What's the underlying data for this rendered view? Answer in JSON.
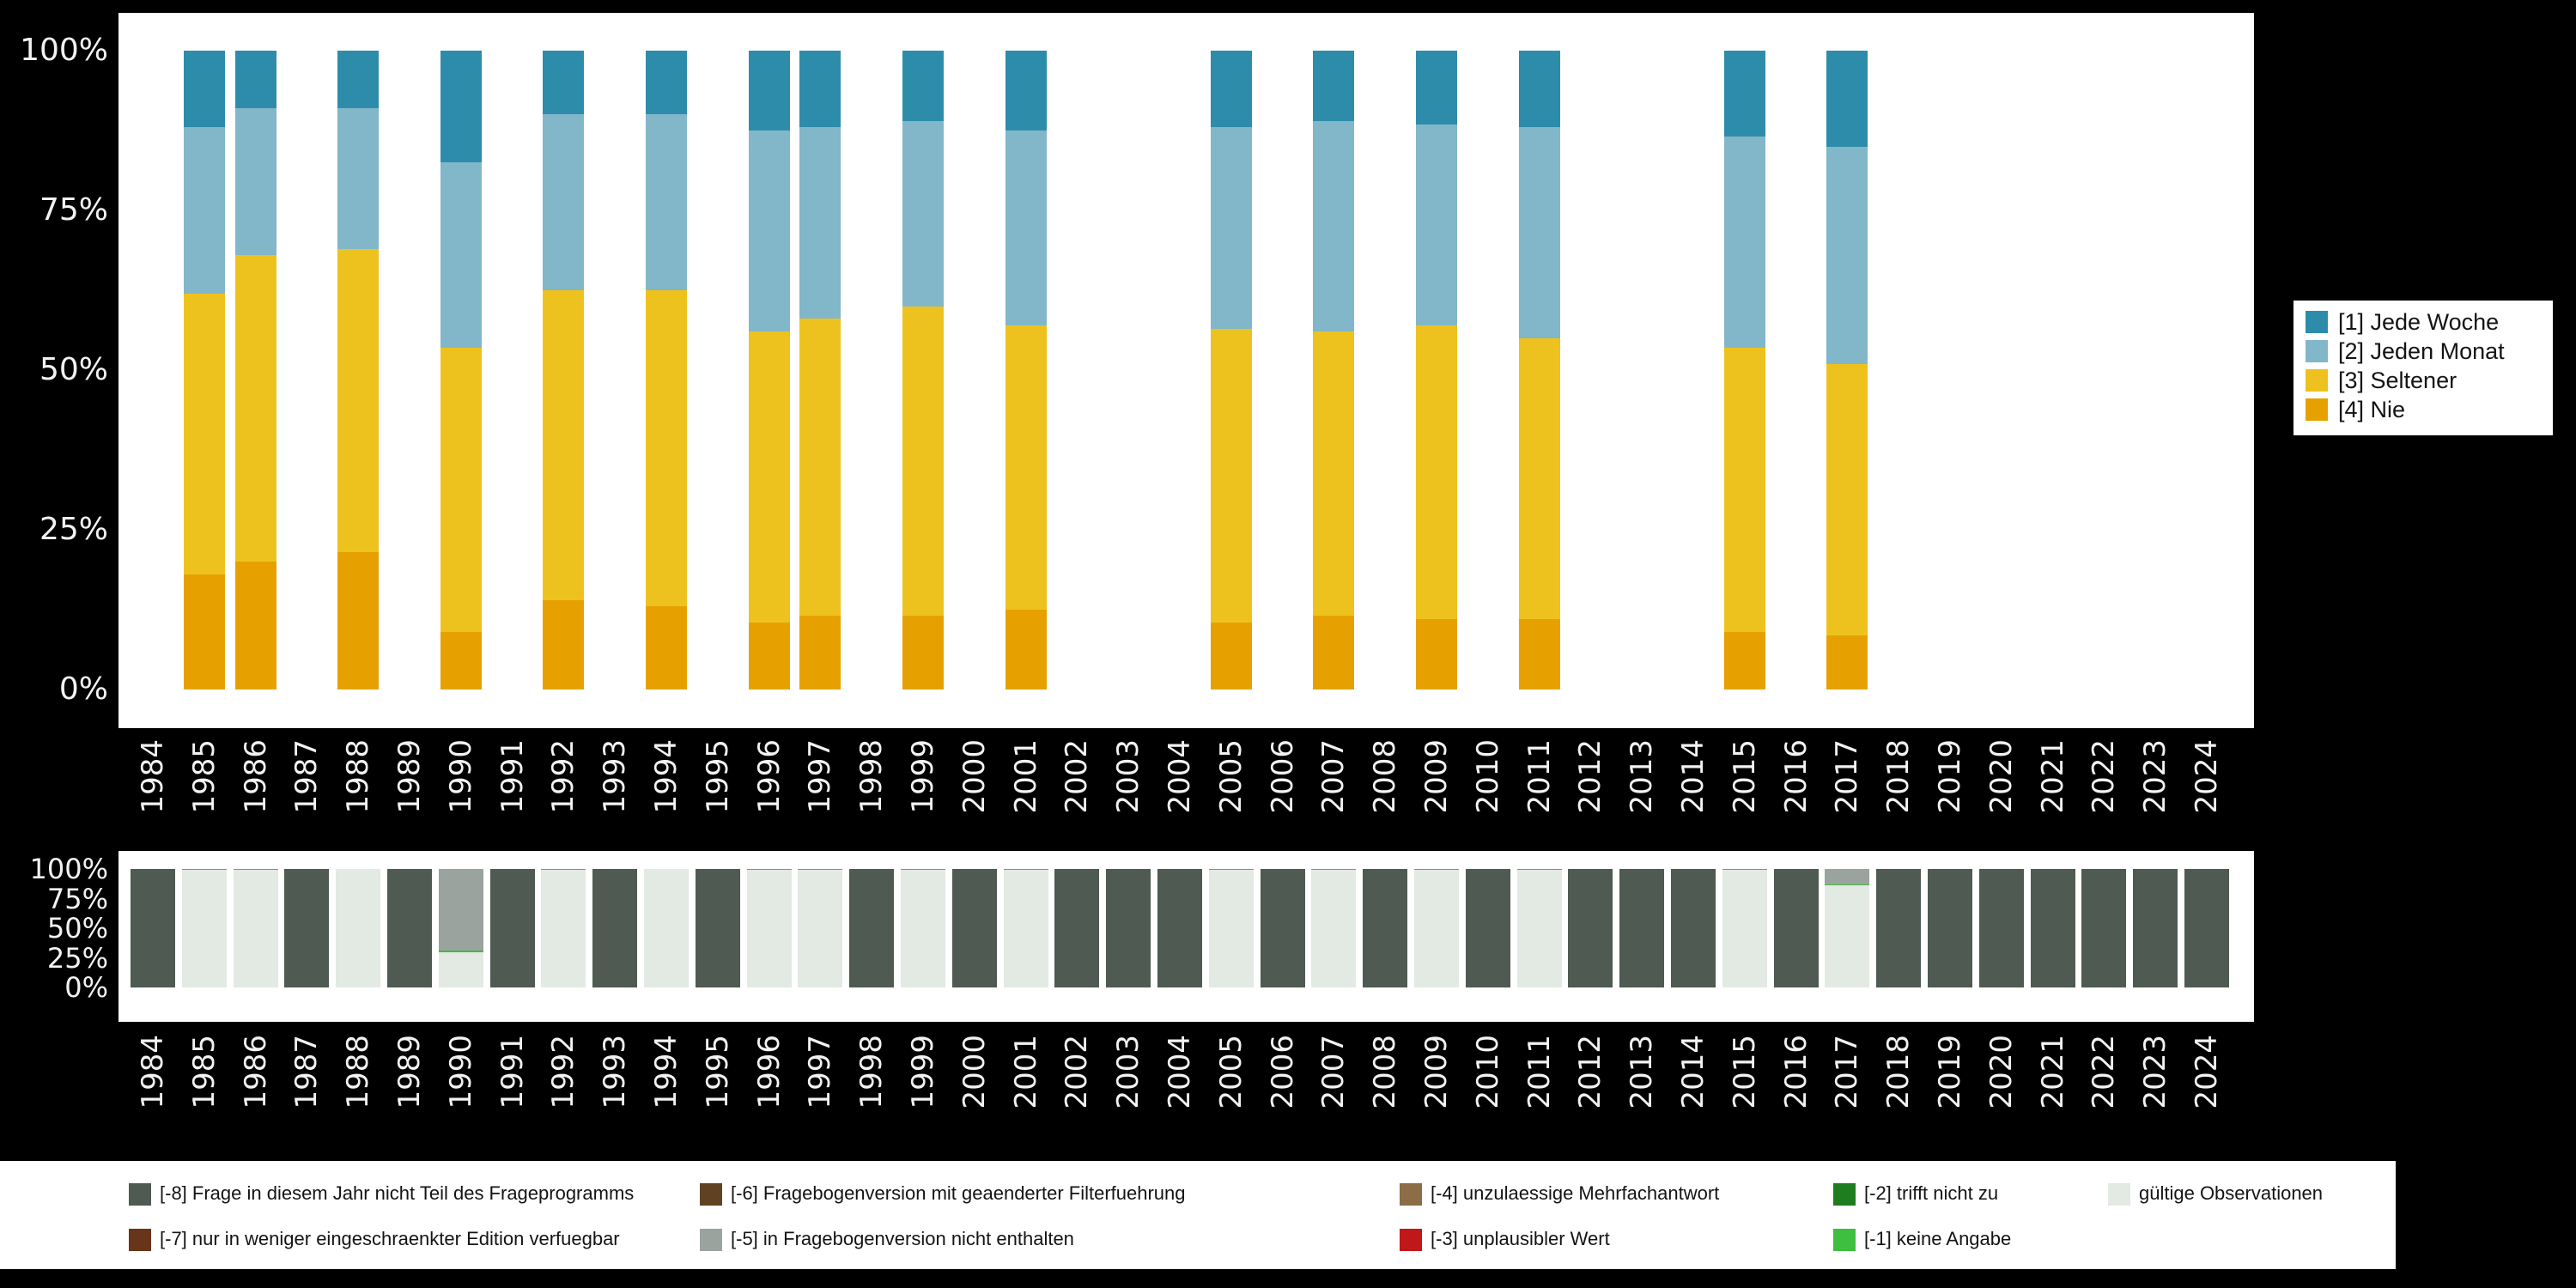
{
  "figure": {
    "background": "#000000",
    "panel_background": "#ffffff"
  },
  "chart_data": [
    {
      "type": "bar",
      "variant": "stacked_percent",
      "name": "frequency-distribution-by-year",
      "legend_position": "right",
      "ylim": [
        0,
        100
      ],
      "y_ticks": [
        "0%",
        "25%",
        "50%",
        "75%",
        "100%"
      ],
      "categories": [
        "1984",
        "1985",
        "1986",
        "1987",
        "1988",
        "1989",
        "1990",
        "1991",
        "1992",
        "1993",
        "1994",
        "1995",
        "1996",
        "1997",
        "1998",
        "1999",
        "2000",
        "2001",
        "2002",
        "2003",
        "2004",
        "2005",
        "2006",
        "2007",
        "2008",
        "2009",
        "2010",
        "2011",
        "2012",
        "2013",
        "2014",
        "2015",
        "2016",
        "2017",
        "2018",
        "2019",
        "2020",
        "2021",
        "2022",
        "2023",
        "2024"
      ],
      "series": [
        {
          "name": "[4] Nie",
          "color": "#e6a100"
        },
        {
          "name": "[3] Seltener",
          "color": "#eec21e"
        },
        {
          "name": "[2] Jeden Monat",
          "color": "#82b6c9"
        },
        {
          "name": "[1] Jede Woche",
          "color": "#2e8cab"
        }
      ],
      "stack_order": "bottom_to_top",
      "values": {
        "1985": [
          18,
          44,
          26,
          12
        ],
        "1986": [
          20,
          48,
          23,
          9
        ],
        "1988": [
          21.5,
          47.5,
          22,
          9
        ],
        "1990": [
          9,
          44.5,
          29,
          17.5
        ],
        "1992": [
          14,
          48.5,
          27.5,
          10
        ],
        "1994": [
          13,
          49.5,
          27.5,
          10
        ],
        "1996": [
          10.5,
          45.5,
          31.5,
          12.5
        ],
        "1997": [
          11.5,
          46.5,
          30,
          12
        ],
        "1999": [
          11.5,
          48.5,
          29,
          11
        ],
        "2001": [
          12.5,
          44.5,
          30.5,
          12.5
        ],
        "2005": [
          10.5,
          46,
          31.5,
          12
        ],
        "2007": [
          11.5,
          44.5,
          33,
          11
        ],
        "2009": [
          11,
          46,
          31.5,
          11.5
        ],
        "2011": [
          11,
          44,
          33,
          12
        ],
        "2015": [
          9,
          44.5,
          33,
          13.5
        ],
        "2017": [
          8.5,
          42.5,
          34,
          15
        ]
      },
      "legend": [
        {
          "name": "[1] Jede Woche",
          "color": "#2e8cab"
        },
        {
          "name": "[2] Jeden Monat",
          "color": "#82b6c9"
        },
        {
          "name": "[3] Seltener",
          "color": "#eec21e"
        },
        {
          "name": "[4] Nie",
          "color": "#e6a100"
        }
      ]
    },
    {
      "type": "bar",
      "variant": "stacked_percent",
      "name": "missings-by-year",
      "legend_position": "bottom",
      "ylim": [
        0,
        100
      ],
      "y_ticks": [
        "0%",
        "25%",
        "50%",
        "75%",
        "100%"
      ],
      "categories": [
        "1984",
        "1985",
        "1986",
        "1987",
        "1988",
        "1989",
        "1990",
        "1991",
        "1992",
        "1993",
        "1994",
        "1995",
        "1996",
        "1997",
        "1998",
        "1999",
        "2000",
        "2001",
        "2002",
        "2003",
        "2004",
        "2005",
        "2006",
        "2007",
        "2008",
        "2009",
        "2010",
        "2011",
        "2012",
        "2013",
        "2014",
        "2015",
        "2016",
        "2017",
        "2018",
        "2019",
        "2020",
        "2021",
        "2022",
        "2023",
        "2024"
      ],
      "segment_colors": {
        "-8": "#4f5a52",
        "-7": "#68351a",
        "-6": "#604223",
        "-5": "#9ba39f",
        "-4": "#8c6d46",
        "-3": "#c01818",
        "-2": "#1e7d1e",
        "-1": "#3fbf3f",
        "valid": "#e3e9e3"
      },
      "stack_order": "bottom_to_top",
      "values": {
        "1984": [
          [
            "-8",
            100
          ]
        ],
        "1985": [
          [
            "valid",
            99
          ],
          [
            "-1",
            1
          ]
        ],
        "1986": [
          [
            "valid",
            99
          ],
          [
            "-1",
            1
          ]
        ],
        "1987": [
          [
            "-8",
            100
          ]
        ],
        "1988": [
          [
            "valid",
            100
          ]
        ],
        "1989": [
          [
            "-8",
            100
          ]
        ],
        "1990": [
          [
            "valid",
            30
          ],
          [
            "-1",
            1
          ],
          [
            "-5",
            69
          ]
        ],
        "1991": [
          [
            "-8",
            100
          ]
        ],
        "1992": [
          [
            "valid",
            99
          ],
          [
            "-1",
            1
          ]
        ],
        "1993": [
          [
            "-8",
            100
          ]
        ],
        "1994": [
          [
            "valid",
            100
          ]
        ],
        "1995": [
          [
            "-8",
            100
          ]
        ],
        "1996": [
          [
            "valid",
            99
          ],
          [
            "-1",
            1
          ]
        ],
        "1997": [
          [
            "valid",
            99
          ],
          [
            "-1",
            1
          ]
        ],
        "1998": [
          [
            "-8",
            100
          ]
        ],
        "1999": [
          [
            "valid",
            99
          ],
          [
            "-1",
            1
          ]
        ],
        "2000": [
          [
            "-8",
            100
          ]
        ],
        "2001": [
          [
            "valid",
            99
          ],
          [
            "-1",
            1
          ]
        ],
        "2002": [
          [
            "-8",
            100
          ]
        ],
        "2003": [
          [
            "-8",
            100
          ]
        ],
        "2004": [
          [
            "-8",
            100
          ]
        ],
        "2005": [
          [
            "valid",
            99
          ],
          [
            "-1",
            1
          ]
        ],
        "2006": [
          [
            "-8",
            100
          ]
        ],
        "2007": [
          [
            "valid",
            99
          ],
          [
            "-1",
            1
          ]
        ],
        "2008": [
          [
            "-8",
            100
          ]
        ],
        "2009": [
          [
            "valid",
            99
          ],
          [
            "-1",
            1
          ]
        ],
        "2010": [
          [
            "-8",
            100
          ]
        ],
        "2011": [
          [
            "valid",
            99
          ],
          [
            "-1",
            1
          ]
        ],
        "2012": [
          [
            "-8",
            100
          ]
        ],
        "2013": [
          [
            "-8",
            100
          ]
        ],
        "2014": [
          [
            "-8",
            100
          ]
        ],
        "2015": [
          [
            "valid",
            99
          ],
          [
            "-1",
            1
          ]
        ],
        "2016": [
          [
            "-8",
            100
          ]
        ],
        "2017": [
          [
            "valid",
            86
          ],
          [
            "-1",
            1
          ],
          [
            "-5",
            13
          ]
        ],
        "2018": [
          [
            "-8",
            100
          ]
        ],
        "2019": [
          [
            "-8",
            100
          ]
        ],
        "2020": [
          [
            "-8",
            100
          ]
        ],
        "2021": [
          [
            "-8",
            100
          ]
        ],
        "2022": [
          [
            "-8",
            100
          ]
        ],
        "2023": [
          [
            "-8",
            100
          ]
        ],
        "2024": [
          [
            "-8",
            100
          ]
        ]
      },
      "legend": [
        {
          "key": "-8",
          "label": "[-8] Frage in diesem Jahr nicht Teil des Frageprogramms",
          "col": 0,
          "row": 0
        },
        {
          "key": "-7",
          "label": "[-7] nur in weniger eingeschraenkter Edition verfuegbar",
          "col": 0,
          "row": 1
        },
        {
          "key": "-6",
          "label": "[-6] Fragebogenversion mit geaenderter Filterfuehrung",
          "col": 1,
          "row": 0
        },
        {
          "key": "-5",
          "label": "[-5] in Fragebogenversion nicht enthalten",
          "col": 1,
          "row": 1
        },
        {
          "key": "-4",
          "label": "[-4] unzulaessige Mehrfachantwort",
          "col": 2,
          "row": 0
        },
        {
          "key": "-3",
          "label": "[-3] unplausibler Wert",
          "col": 2,
          "row": 1
        },
        {
          "key": "-2",
          "label": "[-2] trifft nicht zu",
          "col": 3,
          "row": 0
        },
        {
          "key": "-1",
          "label": "[-1] keine Angabe",
          "col": 3,
          "row": 1
        },
        {
          "key": "valid",
          "label": "gültige Observationen",
          "col": 4,
          "row": 0
        }
      ]
    }
  ]
}
